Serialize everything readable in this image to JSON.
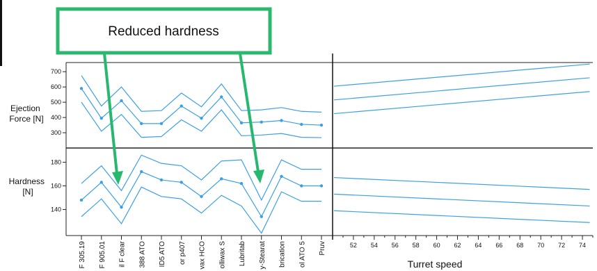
{
  "chart_data": {
    "type": "line",
    "callout": "Reduced hardness",
    "x_categories": [
      "F 305.19",
      "F 905.01",
      "il F clear",
      "388 ATO",
      "ID5 ATO",
      "or p407",
      "vax HCO",
      "olliwax S",
      "Lubritab",
      "y-Stearat",
      "brication",
      "ol ATO 5",
      "Pruv"
    ],
    "turret_speed": {
      "xlabel": "Turret speed",
      "xlim": [
        50,
        75
      ],
      "ticks": [
        52,
        54,
        56,
        58,
        60,
        62,
        64,
        66,
        68,
        70,
        72,
        74
      ]
    },
    "ejection_force": {
      "ylabel": [
        "Ejection",
        "Force [N]"
      ],
      "ylim": [
        200,
        760
      ],
      "ticks": [
        300,
        400,
        500,
        600,
        700
      ],
      "series": [
        {
          "values": [
            675,
            475,
            600,
            440,
            445,
            560,
            470,
            620,
            445,
            450,
            465,
            440,
            435
          ]
        },
        {
          "values": [
            590,
            395,
            510,
            360,
            360,
            475,
            395,
            535,
            365,
            370,
            380,
            355,
            350
          ]
        },
        {
          "values": [
            500,
            310,
            420,
            270,
            275,
            385,
            310,
            450,
            280,
            285,
            295,
            270,
            268
          ]
        }
      ],
      "speed_series": [
        {
          "values": [
            605,
            750
          ]
        },
        {
          "values": [
            515,
            660
          ]
        },
        {
          "values": [
            425,
            570
          ]
        }
      ]
    },
    "hardness": {
      "ylabel": [
        "Hardness",
        "[N]"
      ],
      "ylim": [
        118,
        192
      ],
      "ticks": [
        140,
        160,
        180
      ],
      "series": [
        {
          "values": [
            162,
            177,
            156,
            186,
            179,
            177,
            165,
            181,
            182,
            148,
            182,
            174,
            174
          ]
        },
        {
          "values": [
            148,
            163,
            142,
            172,
            165,
            163,
            151,
            166,
            162,
            134,
            168,
            160,
            160
          ]
        },
        {
          "values": [
            134,
            149,
            128,
            159,
            151,
            149,
            137,
            152,
            143,
            120,
            155,
            147,
            147
          ]
        }
      ],
      "speed_series": [
        {
          "values": [
            167,
            157
          ]
        },
        {
          "values": [
            153,
            143
          ]
        },
        {
          "values": [
            139,
            129
          ]
        }
      ]
    }
  }
}
